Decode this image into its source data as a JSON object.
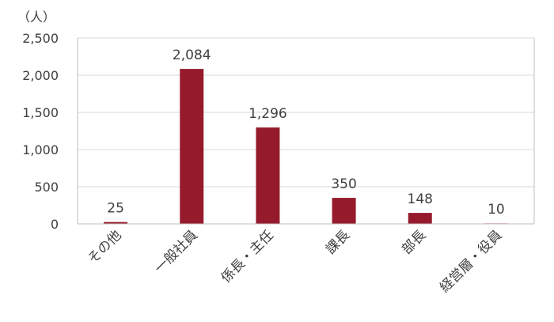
{
  "chart_data": {
    "type": "bar",
    "unit_label": "（人）",
    "categories": [
      "その他",
      "一般社員",
      "係長・主任",
      "課長",
      "部長",
      "経営層・役員"
    ],
    "values": [
      25,
      2084,
      1296,
      350,
      148,
      10
    ],
    "data_labels": [
      "25",
      "2,084",
      "1,296",
      "350",
      "148",
      "10"
    ],
    "ylim": [
      0,
      2500
    ],
    "yticks": [
      0,
      500,
      1000,
      1500,
      2000,
      2500
    ],
    "ytick_labels": [
      "0",
      "500",
      "1,000",
      "1,500",
      "2,000",
      "2,500"
    ],
    "grid": true,
    "bar_colors": [
      "#951b2c",
      "#951b2c",
      "#951b2c",
      "#951b2c",
      "#951b2c",
      "#e7a9b6"
    ]
  }
}
